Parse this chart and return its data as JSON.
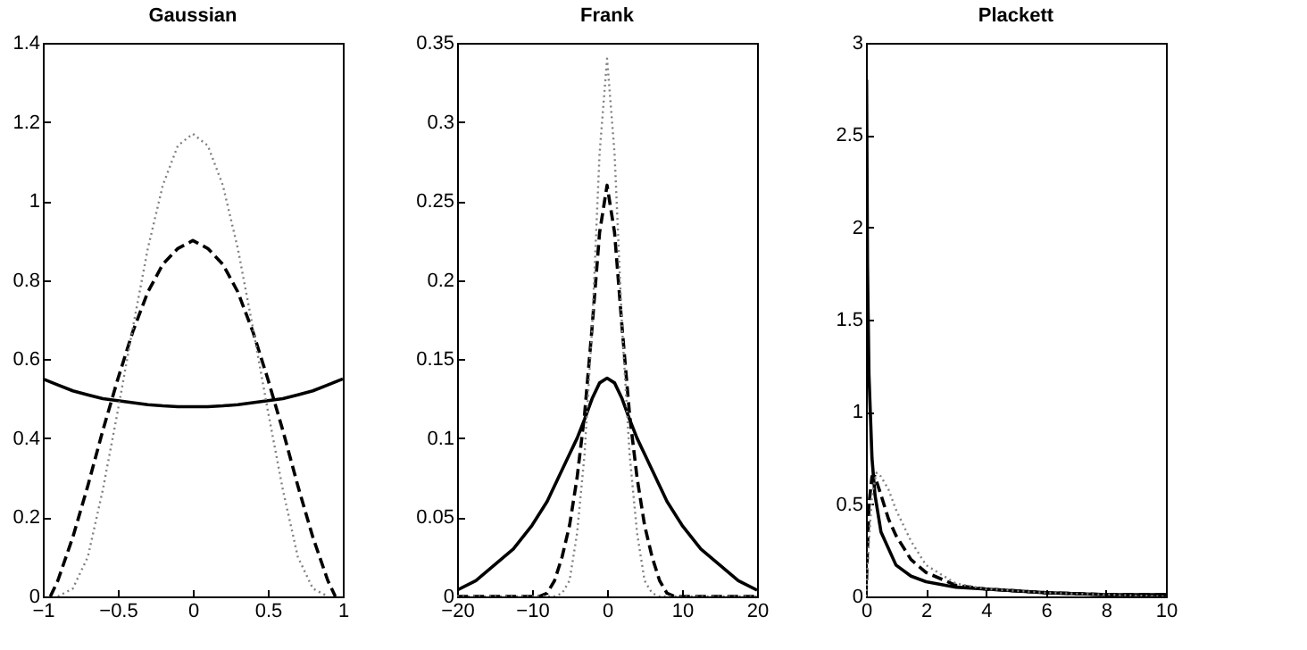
{
  "chart_data": [
    {
      "type": "line",
      "title": "Gaussian",
      "xlim": [
        -1,
        1
      ],
      "xticks": [
        -1,
        -0.5,
        0,
        0.5,
        1
      ],
      "ylim": [
        0,
        1.4
      ],
      "yticks": [
        0,
        0.2,
        0.4,
        0.6,
        0.8,
        1,
        1.2,
        1.4
      ],
      "series": [
        {
          "color": "#000000",
          "line_style": "solid",
          "x": [
            -1,
            -0.9,
            -0.8,
            -0.7,
            -0.6,
            -0.5,
            -0.4,
            -0.3,
            -0.2,
            -0.1,
            0,
            0.1,
            0.2,
            0.3,
            0.4,
            0.5,
            0.6,
            0.7,
            0.8,
            0.9,
            1
          ],
          "values": [
            0.55,
            0.535,
            0.52,
            0.51,
            0.5,
            0.495,
            0.49,
            0.485,
            0.482,
            0.48,
            0.48,
            0.48,
            0.482,
            0.485,
            0.49,
            0.495,
            0.5,
            0.51,
            0.52,
            0.535,
            0.55
          ]
        },
        {
          "color": "#000000",
          "line_style": "dashed",
          "x": [
            -0.95,
            -0.9,
            -0.8,
            -0.7,
            -0.6,
            -0.5,
            -0.4,
            -0.3,
            -0.2,
            -0.1,
            0,
            0.1,
            0.2,
            0.3,
            0.4,
            0.5,
            0.6,
            0.7,
            0.8,
            0.9,
            0.95
          ],
          "values": [
            0,
            0.04,
            0.15,
            0.28,
            0.42,
            0.55,
            0.67,
            0.77,
            0.84,
            0.88,
            0.9,
            0.88,
            0.84,
            0.77,
            0.67,
            0.55,
            0.42,
            0.28,
            0.15,
            0.04,
            0
          ]
        },
        {
          "color": "#808080",
          "line_style": "dotted",
          "x": [
            -0.9,
            -0.8,
            -0.7,
            -0.6,
            -0.5,
            -0.4,
            -0.3,
            -0.2,
            -0.1,
            0,
            0.1,
            0.2,
            0.3,
            0.4,
            0.5,
            0.6,
            0.7,
            0.8,
            0.9
          ],
          "values": [
            0,
            0.02,
            0.1,
            0.27,
            0.47,
            0.68,
            0.88,
            1.04,
            1.14,
            1.17,
            1.14,
            1.04,
            0.88,
            0.68,
            0.47,
            0.27,
            0.1,
            0.02,
            0
          ]
        }
      ]
    },
    {
      "type": "line",
      "title": "Frank",
      "xlim": [
        -20,
        20
      ],
      "xticks": [
        -20,
        -10,
        0,
        10,
        20
      ],
      "ylim": [
        0,
        0.35
      ],
      "yticks": [
        0,
        0.05,
        0.1,
        0.15,
        0.2,
        0.25,
        0.3,
        0.35
      ],
      "series": [
        {
          "color": "#000000",
          "line_style": "solid",
          "x": [
            -20,
            -17.5,
            -15,
            -12.5,
            -10,
            -8,
            -6,
            -5,
            -4,
            -3,
            -2,
            -1,
            0,
            1,
            2,
            3,
            4,
            5,
            6,
            8,
            10,
            12.5,
            15,
            17.5,
            20
          ],
          "values": [
            0.004,
            0.01,
            0.02,
            0.03,
            0.045,
            0.06,
            0.08,
            0.09,
            0.1,
            0.112,
            0.125,
            0.135,
            0.138,
            0.135,
            0.125,
            0.112,
            0.1,
            0.09,
            0.08,
            0.06,
            0.045,
            0.03,
            0.02,
            0.01,
            0.004
          ]
        },
        {
          "color": "#000000",
          "line_style": "dashed",
          "x": [
            -20,
            -9,
            -8,
            -7,
            -6,
            -5,
            -4,
            -3,
            -2,
            -1,
            0,
            1,
            2,
            3,
            4,
            5,
            6,
            7,
            8,
            9,
            20
          ],
          "values": [
            0,
            0,
            0.002,
            0.01,
            0.025,
            0.045,
            0.075,
            0.115,
            0.17,
            0.23,
            0.26,
            0.23,
            0.17,
            0.115,
            0.075,
            0.045,
            0.025,
            0.01,
            0.002,
            0,
            0
          ]
        },
        {
          "color": "#808080",
          "line_style": "dotted",
          "x": [
            -20,
            -7,
            -6,
            -5,
            -4,
            -3,
            -2,
            -1,
            0,
            1,
            2,
            3,
            4,
            5,
            6,
            7,
            20
          ],
          "values": [
            0,
            0,
            0.002,
            0.01,
            0.04,
            0.09,
            0.17,
            0.28,
            0.34,
            0.28,
            0.17,
            0.09,
            0.04,
            0.01,
            0.002,
            0,
            0
          ]
        }
      ]
    },
    {
      "type": "line",
      "title": "Plackett",
      "xlim": [
        0,
        10
      ],
      "xticks": [
        0,
        2,
        4,
        6,
        8,
        10
      ],
      "ylim": [
        0,
        3
      ],
      "yticks": [
        0,
        0.5,
        1,
        1.5,
        2,
        2.5,
        3
      ],
      "series": [
        {
          "color": "#000000",
          "line_style": "solid",
          "x": [
            0.02,
            0.05,
            0.1,
            0.2,
            0.3,
            0.5,
            1,
            1.5,
            2,
            3,
            4,
            6,
            8,
            10
          ],
          "values": [
            2.8,
            1.8,
            1.2,
            0.75,
            0.55,
            0.35,
            0.17,
            0.11,
            0.08,
            0.05,
            0.04,
            0.02,
            0.01,
            0.01
          ]
        },
        {
          "color": "#000000",
          "line_style": "dashed",
          "x": [
            0,
            0.1,
            0.2,
            0.3,
            0.5,
            0.75,
            1,
            1.5,
            2,
            3,
            4,
            6,
            8,
            10
          ],
          "values": [
            0,
            0.5,
            0.65,
            0.65,
            0.55,
            0.42,
            0.33,
            0.2,
            0.13,
            0.06,
            0.04,
            0.02,
            0.01,
            0.01
          ]
        },
        {
          "color": "#808080",
          "line_style": "dotted",
          "x": [
            0,
            0.1,
            0.2,
            0.35,
            0.5,
            0.75,
            1,
            1.5,
            2,
            3,
            4,
            6,
            8,
            10
          ],
          "values": [
            0,
            0.3,
            0.55,
            0.67,
            0.65,
            0.58,
            0.47,
            0.3,
            0.17,
            0.07,
            0.04,
            0.02,
            0.01,
            0
          ]
        }
      ]
    }
  ]
}
